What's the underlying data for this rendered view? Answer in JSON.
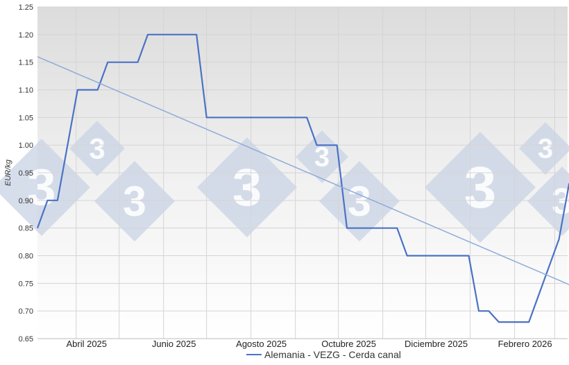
{
  "chart_data": {
    "type": "line",
    "title": "",
    "xlabel": "",
    "ylabel": "EUR/kg",
    "ylim": [
      0.65,
      1.25
    ],
    "y_ticks": [
      "0.65",
      "0.70",
      "0.75",
      "0.80",
      "0.85",
      "0.90",
      "0.95",
      "1.00",
      "1.05",
      "1.10",
      "1.15",
      "1.20",
      "1.25"
    ],
    "x_ticks": [
      {
        "label": "Abril 2025",
        "date": "2025-04-01"
      },
      {
        "label": "Junio 2025",
        "date": "2025-06-01"
      },
      {
        "label": "Agosto 2025",
        "date": "2025-08-01"
      },
      {
        "label": "Octubre 2025",
        "date": "2025-10-01"
      },
      {
        "label": "Diciembre 2025",
        "date": "2025-12-01"
      },
      {
        "label": "Febrero 2026",
        "date": "2026-02-01"
      }
    ],
    "xlim": [
      "2025-03-05",
      "2026-03-10"
    ],
    "grid": true,
    "legend_position": "bottom",
    "series": [
      {
        "name": "Alemania - VEZG - Cerda canal",
        "color": "#4a72c4",
        "points": [
          [
            "2025-03-05",
            0.85
          ],
          [
            "2025-03-12",
            0.9
          ],
          [
            "2025-03-19",
            0.9
          ],
          [
            "2025-04-02",
            1.1
          ],
          [
            "2025-04-16",
            1.1
          ],
          [
            "2025-04-23",
            1.15
          ],
          [
            "2025-05-14",
            1.15
          ],
          [
            "2025-05-21",
            1.2
          ],
          [
            "2025-06-24",
            1.2
          ],
          [
            "2025-07-01",
            1.05
          ],
          [
            "2025-09-09",
            1.05
          ],
          [
            "2025-09-16",
            1.0
          ],
          [
            "2025-09-30",
            1.0
          ],
          [
            "2025-10-07",
            0.85
          ],
          [
            "2025-11-11",
            0.85
          ],
          [
            "2025-11-18",
            0.8
          ],
          [
            "2025-12-31",
            0.8
          ],
          [
            "2026-01-07",
            0.7
          ],
          [
            "2026-01-14",
            0.7
          ],
          [
            "2026-01-21",
            0.68
          ],
          [
            "2026-02-11",
            0.68
          ],
          [
            "2026-03-04",
            0.83
          ],
          [
            "2026-03-11",
            0.93
          ],
          [
            "2026-03-18",
            0.93
          ]
        ]
      },
      {
        "name": "",
        "kind": "trendline",
        "color": "#8eaadb",
        "points": [
          [
            "2025-03-05",
            1.16
          ],
          [
            "2026-03-18",
            0.74
          ]
        ]
      }
    ]
  },
  "watermark": {
    "text": "3",
    "color": "#c9d3e4"
  }
}
